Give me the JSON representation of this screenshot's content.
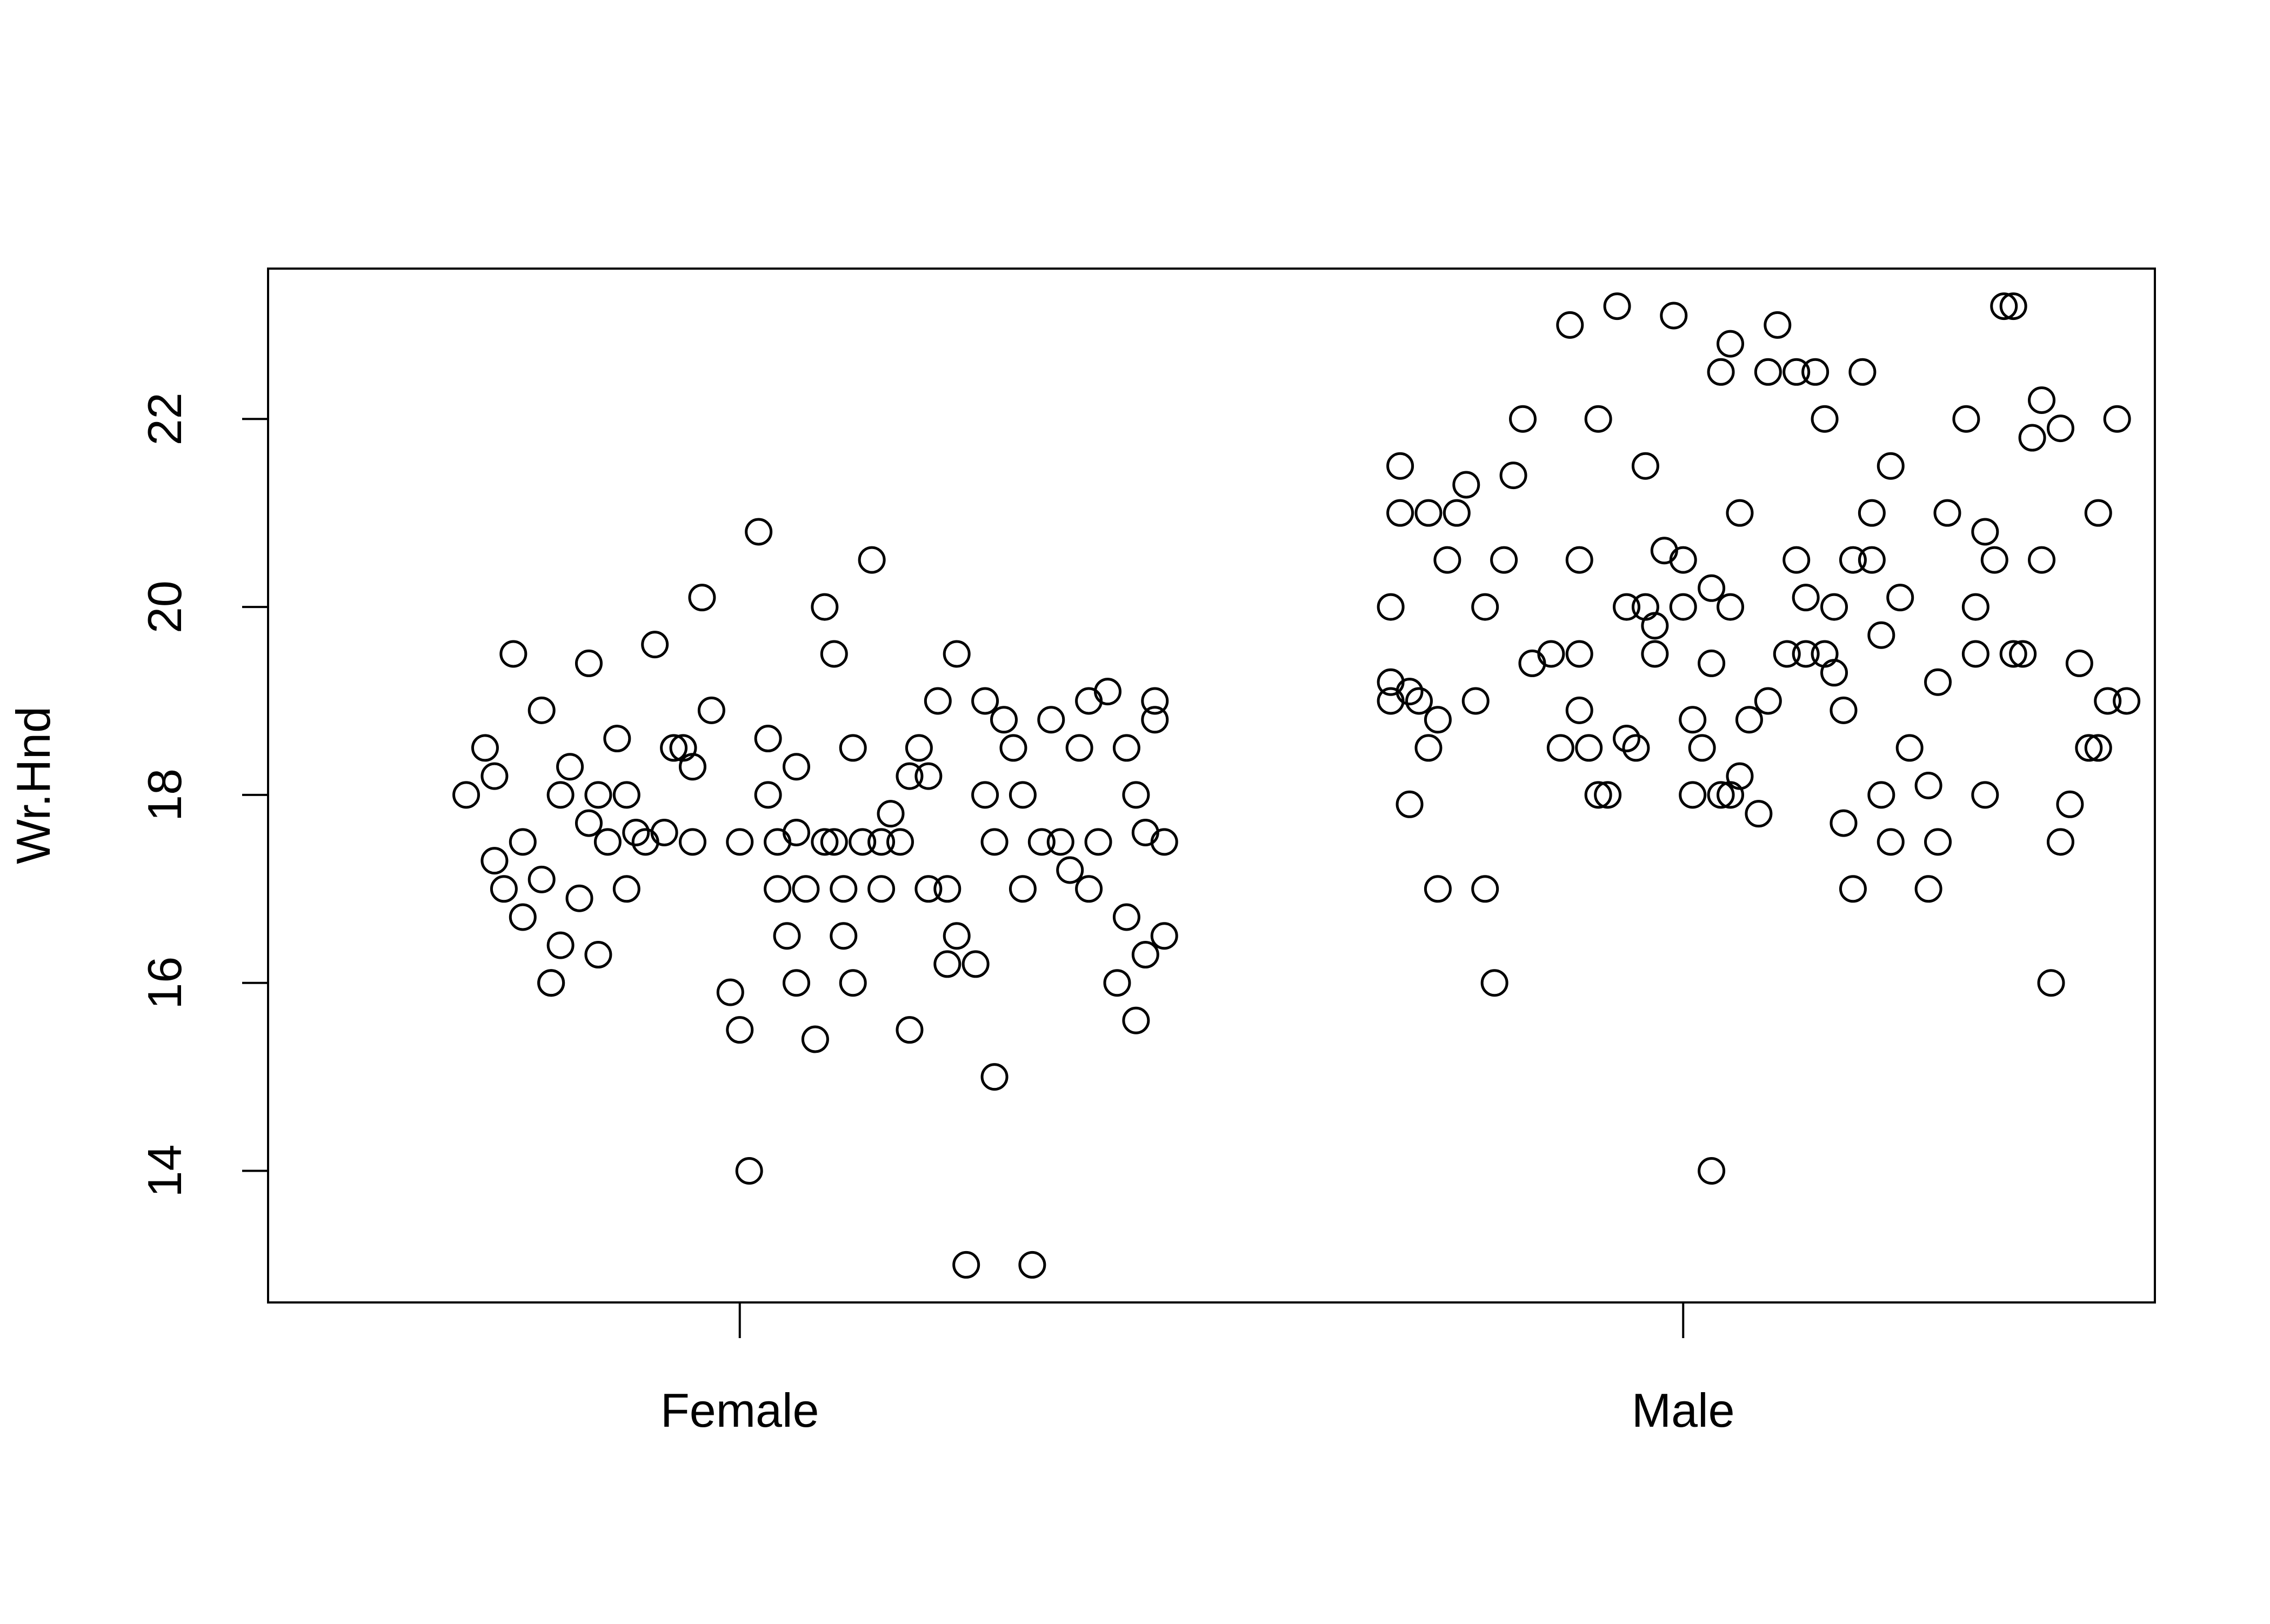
{
  "chart_data": {
    "type": "scatter",
    "title": "",
    "xlabel": "",
    "ylabel": "Wr.Hnd",
    "categories": [
      "Female",
      "Male"
    ],
    "ylim": [
      12.6,
      23.6
    ],
    "yticks": [
      14,
      16,
      18,
      20,
      22
    ],
    "grid": false,
    "legend": "none",
    "marker": "open-circle",
    "colors": {
      "point": "#000000",
      "axis": "#000000",
      "background": "#ffffff"
    },
    "series": [
      {
        "category": "Female",
        "points": [
          {
            "x": -0.29,
            "y": 18.0
          },
          {
            "x": -0.27,
            "y": 18.5
          },
          {
            "x": -0.26,
            "y": 18.2
          },
          {
            "x": -0.26,
            "y": 17.3
          },
          {
            "x": -0.25,
            "y": 17.0
          },
          {
            "x": -0.24,
            "y": 19.5
          },
          {
            "x": -0.23,
            "y": 17.5
          },
          {
            "x": -0.23,
            "y": 16.7
          },
          {
            "x": -0.21,
            "y": 18.9
          },
          {
            "x": -0.21,
            "y": 17.1
          },
          {
            "x": -0.2,
            "y": 16.0
          },
          {
            "x": -0.2,
            "y": 16.0
          },
          {
            "x": -0.19,
            "y": 18.0
          },
          {
            "x": -0.19,
            "y": 16.4
          },
          {
            "x": -0.18,
            "y": 18.3
          },
          {
            "x": -0.17,
            "y": 16.9
          },
          {
            "x": -0.16,
            "y": 19.4
          },
          {
            "x": -0.16,
            "y": 17.7
          },
          {
            "x": -0.15,
            "y": 18.0
          },
          {
            "x": -0.15,
            "y": 16.3
          },
          {
            "x": -0.14,
            "y": 17.5
          },
          {
            "x": -0.13,
            "y": 18.6
          },
          {
            "x": -0.12,
            "y": 18.0
          },
          {
            "x": -0.12,
            "y": 17.0
          },
          {
            "x": -0.11,
            "y": 17.6
          },
          {
            "x": -0.1,
            "y": 17.5
          },
          {
            "x": -0.09,
            "y": 19.6
          },
          {
            "x": -0.08,
            "y": 17.6
          },
          {
            "x": -0.07,
            "y": 18.5
          },
          {
            "x": -0.06,
            "y": 18.5
          },
          {
            "x": -0.05,
            "y": 17.5
          },
          {
            "x": -0.05,
            "y": 18.3
          },
          {
            "x": -0.04,
            "y": 20.1
          },
          {
            "x": -0.03,
            "y": 18.9
          },
          {
            "x": -0.01,
            "y": 15.9
          },
          {
            "x": 0.0,
            "y": 17.5
          },
          {
            "x": 0.0,
            "y": 15.5
          },
          {
            "x": 0.01,
            "y": 14.0
          },
          {
            "x": 0.02,
            "y": 20.8
          },
          {
            "x": 0.03,
            "y": 18.6
          },
          {
            "x": 0.03,
            "y": 18.0
          },
          {
            "x": 0.04,
            "y": 17.5
          },
          {
            "x": 0.04,
            "y": 17.0
          },
          {
            "x": 0.05,
            "y": 16.5
          },
          {
            "x": 0.06,
            "y": 17.6
          },
          {
            "x": 0.06,
            "y": 18.3
          },
          {
            "x": 0.06,
            "y": 16.0
          },
          {
            "x": 0.07,
            "y": 17.0
          },
          {
            "x": 0.08,
            "y": 15.4
          },
          {
            "x": 0.09,
            "y": 17.5
          },
          {
            "x": 0.09,
            "y": 20.0
          },
          {
            "x": 0.1,
            "y": 17.5
          },
          {
            "x": 0.1,
            "y": 19.5
          },
          {
            "x": 0.11,
            "y": 17.0
          },
          {
            "x": 0.11,
            "y": 16.5
          },
          {
            "x": 0.12,
            "y": 16.0
          },
          {
            "x": 0.12,
            "y": 18.5
          },
          {
            "x": 0.13,
            "y": 17.5
          },
          {
            "x": 0.14,
            "y": 20.5
          },
          {
            "x": 0.15,
            "y": 17.0
          },
          {
            "x": 0.15,
            "y": 17.5
          },
          {
            "x": 0.16,
            "y": 17.8
          },
          {
            "x": 0.17,
            "y": 17.5
          },
          {
            "x": 0.18,
            "y": 18.2
          },
          {
            "x": 0.18,
            "y": 15.5
          },
          {
            "x": 0.19,
            "y": 18.5
          },
          {
            "x": 0.2,
            "y": 17.0
          },
          {
            "x": 0.2,
            "y": 18.2
          },
          {
            "x": 0.21,
            "y": 19.0
          },
          {
            "x": 0.22,
            "y": 17.0
          },
          {
            "x": 0.22,
            "y": 16.2
          },
          {
            "x": 0.23,
            "y": 19.5
          },
          {
            "x": 0.23,
            "y": 16.5
          },
          {
            "x": 0.24,
            "y": 13.0
          },
          {
            "x": 0.25,
            "y": 16.2
          },
          {
            "x": 0.26,
            "y": 18.0
          },
          {
            "x": 0.26,
            "y": 19.0
          },
          {
            "x": 0.27,
            "y": 15.0
          },
          {
            "x": 0.27,
            "y": 17.5
          },
          {
            "x": 0.28,
            "y": 18.8
          },
          {
            "x": 0.29,
            "y": 18.5
          },
          {
            "x": 0.3,
            "y": 18.0
          },
          {
            "x": 0.3,
            "y": 17.0
          },
          {
            "x": 0.31,
            "y": 13.0
          },
          {
            "x": 0.32,
            "y": 17.5
          },
          {
            "x": 0.33,
            "y": 18.8
          },
          {
            "x": 0.34,
            "y": 17.5
          },
          {
            "x": 0.35,
            "y": 17.2
          },
          {
            "x": 0.36,
            "y": 18.5
          },
          {
            "x": 0.37,
            "y": 19.0
          },
          {
            "x": 0.37,
            "y": 17.0
          },
          {
            "x": 0.38,
            "y": 17.5
          },
          {
            "x": 0.39,
            "y": 19.1
          },
          {
            "x": 0.4,
            "y": 16.0
          },
          {
            "x": 0.41,
            "y": 18.5
          },
          {
            "x": 0.41,
            "y": 16.7
          },
          {
            "x": 0.42,
            "y": 18.0
          },
          {
            "x": 0.42,
            "y": 15.6
          },
          {
            "x": 0.43,
            "y": 17.6
          },
          {
            "x": 0.43,
            "y": 16.3
          },
          {
            "x": 0.44,
            "y": 18.8
          },
          {
            "x": 0.44,
            "y": 19.0
          },
          {
            "x": 0.45,
            "y": 17.5
          },
          {
            "x": 0.45,
            "y": 16.5
          }
        ]
      },
      {
        "category": "Male",
        "points": [
          {
            "x": -0.31,
            "y": 20.0
          },
          {
            "x": -0.31,
            "y": 19.2
          },
          {
            "x": -0.31,
            "y": 19.0
          },
          {
            "x": -0.3,
            "y": 21.5
          },
          {
            "x": -0.3,
            "y": 21.0
          },
          {
            "x": -0.29,
            "y": 19.1
          },
          {
            "x": -0.29,
            "y": 17.9
          },
          {
            "x": -0.28,
            "y": 19.0
          },
          {
            "x": -0.27,
            "y": 18.5
          },
          {
            "x": -0.27,
            "y": 21.0
          },
          {
            "x": -0.26,
            "y": 18.8
          },
          {
            "x": -0.26,
            "y": 17.0
          },
          {
            "x": -0.25,
            "y": 20.5
          },
          {
            "x": -0.24,
            "y": 21.0
          },
          {
            "x": -0.23,
            "y": 21.3
          },
          {
            "x": -0.22,
            "y": 19.0
          },
          {
            "x": -0.21,
            "y": 17.0
          },
          {
            "x": -0.21,
            "y": 20.0
          },
          {
            "x": -0.2,
            "y": 16.0
          },
          {
            "x": -0.19,
            "y": 20.5
          },
          {
            "x": -0.18,
            "y": 21.4
          },
          {
            "x": -0.17,
            "y": 22.0
          },
          {
            "x": -0.16,
            "y": 19.4
          },
          {
            "x": -0.14,
            "y": 19.5
          },
          {
            "x": -0.13,
            "y": 18.5
          },
          {
            "x": -0.12,
            "y": 23.0
          },
          {
            "x": -0.11,
            "y": 19.5
          },
          {
            "x": -0.11,
            "y": 20.5
          },
          {
            "x": -0.11,
            "y": 18.9
          },
          {
            "x": -0.1,
            "y": 18.5
          },
          {
            "x": -0.09,
            "y": 22.0
          },
          {
            "x": -0.09,
            "y": 18.0
          },
          {
            "x": -0.08,
            "y": 18.0
          },
          {
            "x": -0.07,
            "y": 23.2
          },
          {
            "x": -0.06,
            "y": 20.0
          },
          {
            "x": -0.06,
            "y": 18.6
          },
          {
            "x": -0.05,
            "y": 18.5
          },
          {
            "x": -0.04,
            "y": 21.5
          },
          {
            "x": -0.04,
            "y": 20.0
          },
          {
            "x": -0.03,
            "y": 19.5
          },
          {
            "x": -0.03,
            "y": 19.8
          },
          {
            "x": -0.02,
            "y": 20.6
          },
          {
            "x": -0.01,
            "y": 23.1
          },
          {
            "x": 0.0,
            "y": 20.5
          },
          {
            "x": 0.0,
            "y": 20.0
          },
          {
            "x": 0.01,
            "y": 18.0
          },
          {
            "x": 0.01,
            "y": 18.8
          },
          {
            "x": 0.02,
            "y": 18.5
          },
          {
            "x": 0.03,
            "y": 19.4
          },
          {
            "x": 0.03,
            "y": 14.0
          },
          {
            "x": 0.03,
            "y": 20.2
          },
          {
            "x": 0.04,
            "y": 22.5
          },
          {
            "x": 0.04,
            "y": 18.0
          },
          {
            "x": 0.05,
            "y": 18.0
          },
          {
            "x": 0.05,
            "y": 20.0
          },
          {
            "x": 0.05,
            "y": 22.8
          },
          {
            "x": 0.06,
            "y": 21.0
          },
          {
            "x": 0.06,
            "y": 18.2
          },
          {
            "x": 0.07,
            "y": 18.8
          },
          {
            "x": 0.08,
            "y": 17.8
          },
          {
            "x": 0.09,
            "y": 19.0
          },
          {
            "x": 0.09,
            "y": 22.5
          },
          {
            "x": 0.1,
            "y": 23.0
          },
          {
            "x": 0.11,
            "y": 19.5
          },
          {
            "x": 0.12,
            "y": 22.5
          },
          {
            "x": 0.12,
            "y": 20.5
          },
          {
            "x": 0.13,
            "y": 20.1
          },
          {
            "x": 0.13,
            "y": 19.5
          },
          {
            "x": 0.14,
            "y": 22.5
          },
          {
            "x": 0.15,
            "y": 19.5
          },
          {
            "x": 0.15,
            "y": 22.0
          },
          {
            "x": 0.16,
            "y": 20.0
          },
          {
            "x": 0.16,
            "y": 19.3
          },
          {
            "x": 0.17,
            "y": 18.9
          },
          {
            "x": 0.17,
            "y": 17.7
          },
          {
            "x": 0.18,
            "y": 20.5
          },
          {
            "x": 0.18,
            "y": 17.0
          },
          {
            "x": 0.19,
            "y": 22.5
          },
          {
            "x": 0.2,
            "y": 20.5
          },
          {
            "x": 0.2,
            "y": 21.0
          },
          {
            "x": 0.21,
            "y": 19.7
          },
          {
            "x": 0.21,
            "y": 18.0
          },
          {
            "x": 0.22,
            "y": 17.5
          },
          {
            "x": 0.22,
            "y": 21.5
          },
          {
            "x": 0.23,
            "y": 20.1
          },
          {
            "x": 0.24,
            "y": 18.5
          },
          {
            "x": 0.26,
            "y": 17.0
          },
          {
            "x": 0.26,
            "y": 18.1
          },
          {
            "x": 0.27,
            "y": 19.2
          },
          {
            "x": 0.27,
            "y": 17.5
          },
          {
            "x": 0.28,
            "y": 21.0
          },
          {
            "x": 0.3,
            "y": 22.0
          },
          {
            "x": 0.31,
            "y": 20.0
          },
          {
            "x": 0.31,
            "y": 19.5
          },
          {
            "x": 0.32,
            "y": 18.0
          },
          {
            "x": 0.32,
            "y": 20.8
          },
          {
            "x": 0.33,
            "y": 20.5
          },
          {
            "x": 0.34,
            "y": 23.2
          },
          {
            "x": 0.35,
            "y": 23.2
          },
          {
            "x": 0.35,
            "y": 19.5
          },
          {
            "x": 0.36,
            "y": 19.5
          },
          {
            "x": 0.37,
            "y": 21.8
          },
          {
            "x": 0.38,
            "y": 20.5
          },
          {
            "x": 0.38,
            "y": 22.2
          },
          {
            "x": 0.39,
            "y": 16.0
          },
          {
            "x": 0.4,
            "y": 17.5
          },
          {
            "x": 0.4,
            "y": 21.9
          },
          {
            "x": 0.41,
            "y": 17.9
          },
          {
            "x": 0.42,
            "y": 19.4
          },
          {
            "x": 0.43,
            "y": 18.5
          },
          {
            "x": 0.44,
            "y": 18.5
          },
          {
            "x": 0.44,
            "y": 21.0
          },
          {
            "x": 0.45,
            "y": 19.0
          },
          {
            "x": 0.46,
            "y": 22.0
          },
          {
            "x": 0.47,
            "y": 19.0
          }
        ]
      }
    ]
  }
}
